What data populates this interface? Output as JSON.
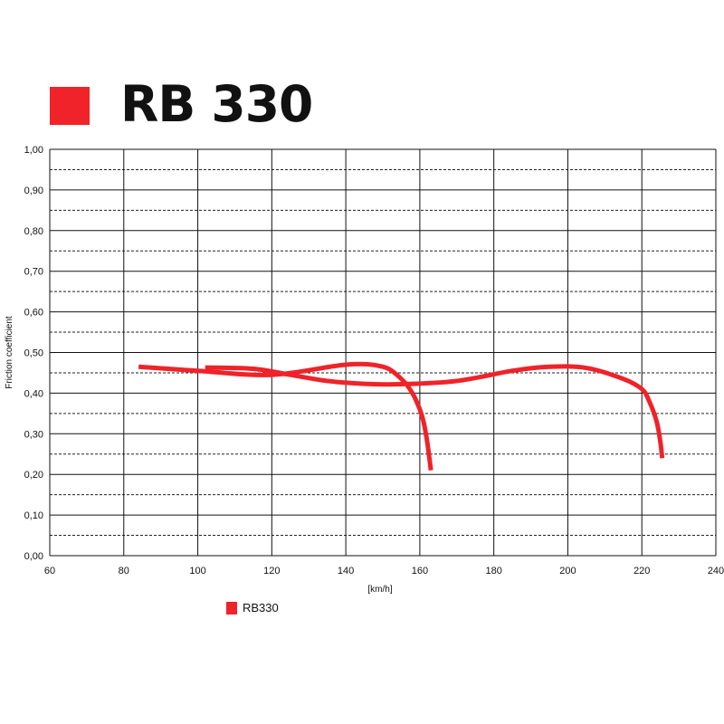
{
  "header": {
    "title": "RB 330",
    "swatch_color": "#ef2329"
  },
  "chart_data": {
    "type": "line",
    "xlabel": "[km/h]",
    "ylabel": "Friction coefficient",
    "xlim": [
      60,
      240
    ],
    "ylim": [
      0,
      1
    ],
    "x_ticks": [
      "60",
      "80",
      "100",
      "120",
      "140",
      "160",
      "180",
      "200",
      "220",
      "240"
    ],
    "y_ticks": [
      "0,00",
      "0,10",
      "0,20",
      "0,30",
      "0,40",
      "0,50",
      "0,60",
      "0,70",
      "0,80",
      "0,90",
      "1,00"
    ],
    "grid": true,
    "minor_grid_dashed": true,
    "legend_position": "bottom-left",
    "series": [
      {
        "name": "RB330",
        "color": "#ef2329",
        "segments": [
          {
            "x": [
              84,
              100,
              120,
              140,
              150,
              155,
              158,
              160,
              161,
              162,
              163
            ],
            "y": [
              0.465,
              0.455,
              0.445,
              0.47,
              0.465,
              0.435,
              0.4,
              0.36,
              0.33,
              0.28,
              0.21
            ]
          },
          {
            "x": [
              102,
              115,
              125,
              135,
              145,
              155,
              170,
              185,
              195,
              205,
              215,
              220,
              222,
              224,
              225,
              225.5
            ],
            "y": [
              0.463,
              0.46,
              0.445,
              0.43,
              0.423,
              0.422,
              0.43,
              0.455,
              0.465,
              0.462,
              0.435,
              0.41,
              0.38,
              0.33,
              0.28,
              0.24
            ]
          }
        ]
      }
    ]
  }
}
